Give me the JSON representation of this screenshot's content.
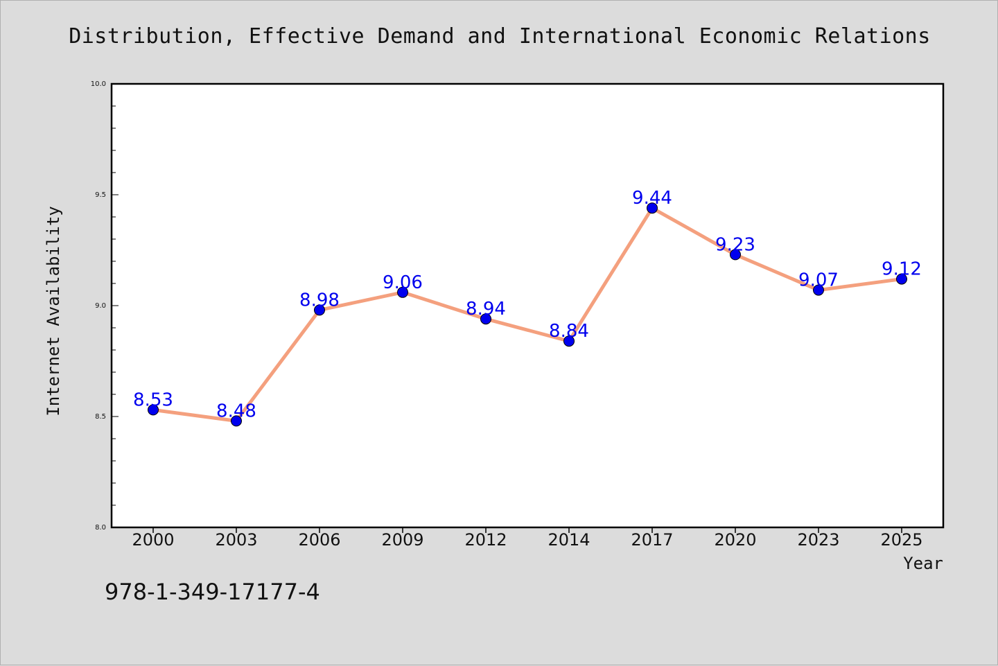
{
  "chart_data": {
    "type": "line",
    "title": "Distribution, Effective Demand and International Economic Relations",
    "xlabel": "Year",
    "ylabel": "Internet Availability",
    "categories": [
      "2000",
      "2003",
      "2006",
      "2009",
      "2012",
      "2014",
      "2017",
      "2020",
      "2023",
      "2025"
    ],
    "series": [
      {
        "values": [
          8.53,
          8.48,
          8.98,
          9.06,
          8.94,
          8.84,
          9.44,
          9.23,
          9.07,
          9.12
        ],
        "value_labels": [
          "8.53",
          "8.48",
          "8.98",
          "9.06",
          "8.94",
          "8.84",
          "9.44",
          "9.23",
          "9.07",
          "9.12"
        ],
        "line_color": "#f4a07e",
        "marker_color": "#0000ee"
      }
    ],
    "ylim": [
      8.0,
      10.0
    ],
    "yticks": [
      "8.0",
      "8.5",
      "9.0",
      "9.5",
      "10.0"
    ],
    "grid": false,
    "legend": "none"
  },
  "footer": {
    "isbn": "978-1-349-17177-4"
  }
}
